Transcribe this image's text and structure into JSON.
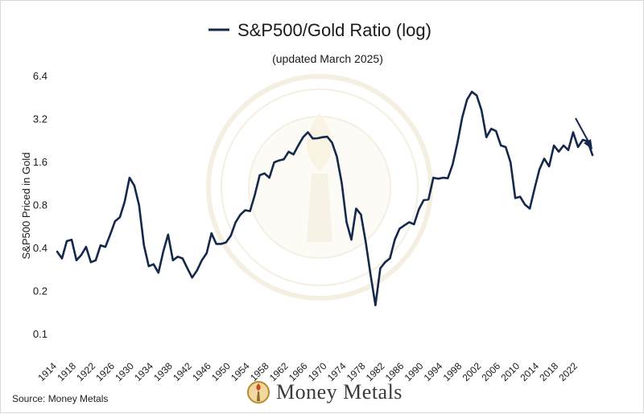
{
  "chart_data": {
    "type": "line",
    "title": "S&P500/Gold Ratio (log)",
    "subtitle": "(updated March 2025)",
    "ylabel": "S&P500 Priced in Gold",
    "xlabel": "",
    "yscale": "log2",
    "ylim": [
      0.1,
      6.4
    ],
    "xlim": [
      1914,
      2025
    ],
    "yticks": [
      6.4,
      3.2,
      1.6,
      0.8,
      0.4,
      0.2,
      0.1
    ],
    "xticks": [
      1914,
      1918,
      1922,
      1926,
      1930,
      1934,
      1938,
      1942,
      1946,
      1950,
      1954,
      1958,
      1962,
      1966,
      1970,
      1974,
      1978,
      1982,
      1986,
      1990,
      1994,
      1998,
      2002,
      2006,
      2010,
      2014,
      2018,
      2022
    ],
    "legend": "top-center",
    "annotation": "arrow pointing down at end of series",
    "series": [
      {
        "name": "S&P500/Gold Ratio (log)",
        "color": "#14284b",
        "x": [
          1914,
          1915,
          1916,
          1917,
          1918,
          1919,
          1920,
          1921,
          1922,
          1923,
          1924,
          1925,
          1926,
          1927,
          1928,
          1929,
          1930,
          1931,
          1932,
          1933,
          1934,
          1935,
          1936,
          1937,
          1938,
          1939,
          1940,
          1941,
          1942,
          1943,
          1944,
          1945,
          1946,
          1947,
          1948,
          1949,
          1950,
          1951,
          1952,
          1953,
          1954,
          1955,
          1956,
          1957,
          1958,
          1959,
          1960,
          1961,
          1962,
          1963,
          1964,
          1965,
          1966,
          1967,
          1968,
          1969,
          1970,
          1971,
          1972,
          1973,
          1974,
          1975,
          1976,
          1977,
          1978,
          1979,
          1980,
          1981,
          1982,
          1983,
          1984,
          1985,
          1986,
          1987,
          1988,
          1989,
          1990,
          1991,
          1992,
          1993,
          1994,
          1995,
          1996,
          1997,
          1998,
          1999,
          2000,
          2001,
          2002,
          2003,
          2004,
          2005,
          2006,
          2007,
          2008,
          2009,
          2010,
          2011,
          2012,
          2013,
          2014,
          2015,
          2016,
          2017,
          2018,
          2019,
          2020,
          2021,
          2022,
          2023,
          2024,
          2025
        ],
        "values": [
          0.38,
          0.34,
          0.45,
          0.46,
          0.33,
          0.36,
          0.41,
          0.32,
          0.33,
          0.42,
          0.41,
          0.5,
          0.62,
          0.66,
          0.85,
          1.25,
          1.1,
          0.8,
          0.42,
          0.3,
          0.31,
          0.27,
          0.38,
          0.5,
          0.33,
          0.35,
          0.34,
          0.29,
          0.25,
          0.28,
          0.33,
          0.37,
          0.51,
          0.43,
          0.43,
          0.44,
          0.49,
          0.61,
          0.69,
          0.74,
          0.73,
          0.95,
          1.3,
          1.34,
          1.25,
          1.6,
          1.65,
          1.68,
          1.9,
          1.82,
          2.1,
          2.4,
          2.6,
          2.35,
          2.36,
          2.4,
          2.42,
          2.2,
          1.75,
          1.15,
          0.61,
          0.46,
          0.76,
          0.69,
          0.44,
          0.26,
          0.16,
          0.29,
          0.32,
          0.34,
          0.46,
          0.55,
          0.58,
          0.61,
          0.59,
          0.75,
          0.87,
          0.88,
          1.25,
          1.23,
          1.25,
          1.24,
          1.55,
          2.2,
          3.3,
          4.4,
          5.0,
          4.7,
          3.7,
          2.4,
          2.75,
          2.65,
          2.1,
          2.05,
          1.6,
          0.9,
          0.92,
          0.81,
          0.76,
          1.05,
          1.43,
          1.7,
          1.5,
          2.1,
          1.9,
          2.1,
          1.95,
          2.6,
          2.05,
          2.3,
          2.25,
          1.8
        ]
      }
    ]
  },
  "footer": {
    "source": "Source: Money Metals",
    "brand": "Money Metals"
  }
}
